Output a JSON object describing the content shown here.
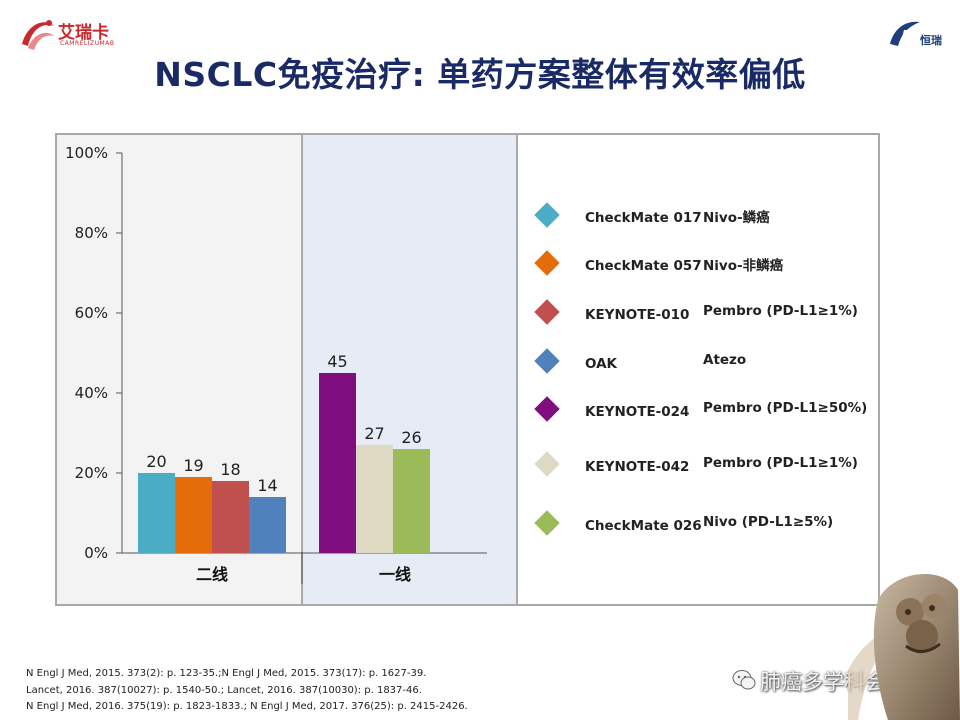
{
  "header": {
    "logo_left_text": "艾瑞卡",
    "logo_left_sub": "CAMRELIZUMAB",
    "logo_right_text": "恒瑞",
    "title": "NSCLC免疫治疗: 单药方案整体有效率偏低"
  },
  "chart_data": {
    "type": "bar",
    "ylim": [
      0,
      100
    ],
    "yticks": [
      "0%",
      "20%",
      "40%",
      "60%",
      "80%",
      "100%"
    ],
    "groups": [
      {
        "label": "二线",
        "bars": [
          {
            "trial": "CheckMate 017",
            "value": 20
          },
          {
            "trial": "CheckMate 057",
            "value": 19
          },
          {
            "trial": "KEYNOTE-010",
            "value": 18
          },
          {
            "trial": "OAK",
            "value": 14
          }
        ]
      },
      {
        "label": "一线",
        "bars": [
          {
            "trial": "KEYNOTE-024",
            "value": 45
          },
          {
            "trial": "KEYNOTE-042",
            "value": 27
          },
          {
            "trial": "CheckMate 026",
            "value": 26
          }
        ]
      }
    ],
    "legend": [
      {
        "trial": "CheckMate 017",
        "arm": "Nivo-鳞癌",
        "color": "#4bacc6"
      },
      {
        "trial": "CheckMate 057",
        "arm": "Nivo-非鳞癌",
        "color": "#e46c0a"
      },
      {
        "trial": "KEYNOTE-010",
        "arm": "Pembro (PD-L1≥1%)",
        "color": "#c0504d"
      },
      {
        "trial": "OAK",
        "arm": "Atezo",
        "color": "#4f81bd"
      },
      {
        "trial": "KEYNOTE-024",
        "arm": "Pembro (PD-L1≥50%)",
        "color": "#7f0f7e"
      },
      {
        "trial": "KEYNOTE-042",
        "arm": "Pembro (PD-L1≥1%)",
        "color": "#ddd9c3"
      },
      {
        "trial": "CheckMate 026",
        "arm": "Nivo (PD-L1≥5%)",
        "color": "#9bbb59"
      }
    ]
  },
  "references": [
    "N Engl J Med, 2015. 373(2): p. 123-35.;N Engl J Med, 2015. 373(17): p. 1627-39.",
    "Lancet, 2016. 387(10027): p. 1540-50.; Lancet, 2016. 387(10030): p. 1837-46.",
    "N Engl J Med, 2016. 375(19): p. 1823-1833.; N Engl J Med, 2017. 376(25): p. 2415-2426."
  ],
  "watermark": {
    "text": "肺癌多学科会诊",
    "icon": "wechat-icon"
  }
}
